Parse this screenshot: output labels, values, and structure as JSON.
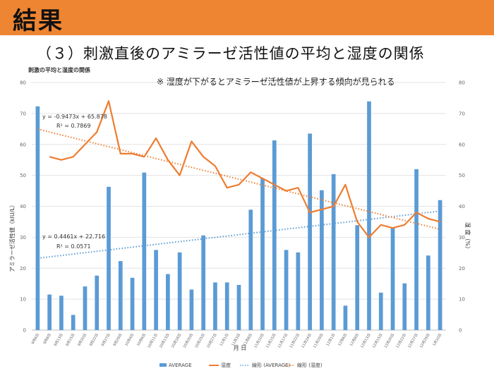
{
  "slide": {
    "title": "結果",
    "subtitle": "（３）刺激直後のアミラーゼ活性値の平均と湿度の関係"
  },
  "colors": {
    "band": "#ee8532",
    "bar": "#5b9bd5",
    "line": "#ed7d31"
  },
  "chart_data": {
    "type": "bar",
    "title": "刺激の平均と湿度の関係",
    "annotation": "※ 湿度が下がるとアミラーゼ活性値が上昇する傾向が見られる",
    "xlabel": "月 日",
    "ylabel": "アミラーゼ活性値（kIU/L）",
    "ylabel2": "湿 度（%）",
    "ylim": [
      0,
      80
    ],
    "y2lim": [
      0,
      80
    ],
    "yticks": [
      "0",
      "10",
      "20",
      "30",
      "40",
      "50",
      "60",
      "70",
      "80"
    ],
    "y2ticks": [
      "0",
      "10",
      "20",
      "30",
      "40",
      "50",
      "60",
      "70",
      "80"
    ],
    "categories": [
      "9月6日",
      "9月8日",
      "9月13日",
      "9月15日",
      "9月20日",
      "9月22日",
      "9月27日",
      "9月29日",
      "10月4日",
      "10月6日",
      "10月11日",
      "10月13日",
      "10月18日",
      "10月20日",
      "10月25日",
      "10月27日",
      "11月1日",
      "11月3日",
      "11月8日",
      "11月10日",
      "11月15日",
      "11月17日",
      "11月22日",
      "11月24日",
      "11月29日",
      "12月1日",
      "12月6日",
      "12月8日",
      "12月13日",
      "12月15日",
      "12月20日",
      "12月22日",
      "12月27日",
      "12月29日",
      "1月10日"
    ],
    "series": [
      {
        "name": "AVERAGE",
        "type": "bar",
        "values": [
          72.3,
          11.5,
          11.1,
          4.9,
          14.1,
          17.6,
          46.3,
          22.3,
          16.9,
          50.9,
          25.9,
          18.1,
          25.1,
          13.1,
          30.6,
          15.4,
          15.4,
          14.6,
          38.9,
          49.0,
          61.3,
          25.9,
          25.1,
          63.5,
          45.2,
          50.4,
          7.9,
          33.9,
          73.9,
          12.1,
          33.1,
          15.1,
          52.0,
          24.1,
          42.0
        ]
      },
      {
        "name": "湿度",
        "type": "line",
        "values": [
          null,
          56,
          55,
          56,
          60,
          64,
          74,
          57,
          57,
          56,
          62,
          55,
          50,
          61,
          56,
          53,
          46,
          47,
          51,
          49,
          47,
          45,
          46,
          38,
          39,
          40,
          47,
          35,
          30,
          34,
          33,
          34,
          38,
          36,
          35
        ]
      }
    ],
    "trendlines": [
      {
        "name": "線形 (AVERAGE)",
        "equation": "y = 0.4461x + 22.716",
        "r2": "R² = 0.0571"
      },
      {
        "name": "線形 (湿度)",
        "equation": "y = -0.9473x + 65.878",
        "r2": "R² = 0.7869"
      }
    ]
  }
}
